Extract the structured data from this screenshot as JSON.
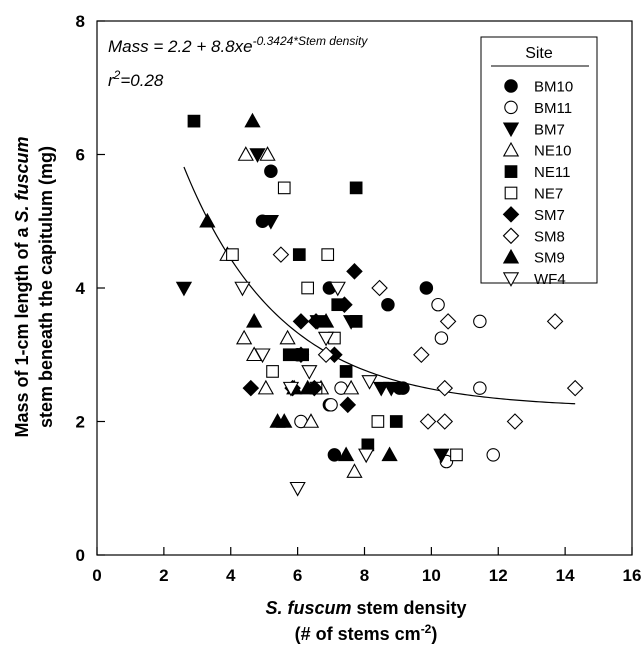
{
  "chart_data": {
    "type": "scatter",
    "xlabel_parts": [
      "S. fuscum",
      " stem density"
    ],
    "xlabel_line2_parts": [
      "(# of stems cm",
      "-2",
      ")"
    ],
    "ylabel_line1_parts": [
      "Mass of 1-cm length of a ",
      "S. fuscum"
    ],
    "ylabel_line2": "stem beneath the capitulum (mg)",
    "xlim": [
      0,
      16
    ],
    "ylim": [
      0,
      8
    ],
    "x_ticks": [
      "0",
      "2",
      "4",
      "6",
      "8",
      "10",
      "12",
      "14",
      "16"
    ],
    "y_ticks": [
      "0",
      "2",
      "4",
      "6",
      "8"
    ],
    "grid": false,
    "legend": {
      "title": "Site",
      "placement": "top-right"
    },
    "annotation": {
      "equation_prefix": "Mass = 2.2 + 8.8xe",
      "equation_exponent": "-0.3424*Stem density",
      "r2_prefix": "r",
      "r2_sup": "2",
      "r2_value": "=0.28"
    },
    "fit": {
      "a": 2.2,
      "b": 8.8,
      "k": 0.3424,
      "x_range": [
        2.6,
        14.3
      ]
    },
    "series": [
      {
        "name": "BM10",
        "marker": "circle-filled",
        "points": [
          [
            5.2,
            5.75
          ],
          [
            4.95,
            5.0
          ],
          [
            6.0,
            3.0
          ],
          [
            6.95,
            4.0
          ],
          [
            7.1,
            1.5
          ],
          [
            6.95,
            2.25
          ],
          [
            8.7,
            3.75
          ],
          [
            9.05,
            2.5
          ],
          [
            9.15,
            2.5
          ],
          [
            9.85,
            4.0
          ]
        ]
      },
      {
        "name": "BM11",
        "marker": "circle-open",
        "points": [
          [
            6.1,
            2.0
          ],
          [
            7.0,
            2.25
          ],
          [
            7.3,
            2.5
          ],
          [
            10.2,
            3.75
          ],
          [
            10.3,
            3.25
          ],
          [
            10.45,
            1.4
          ],
          [
            11.45,
            3.5
          ],
          [
            11.45,
            2.5
          ],
          [
            11.85,
            1.5
          ]
        ]
      },
      {
        "name": "BM7",
        "marker": "triangle-down-filled",
        "points": [
          [
            2.6,
            4.0
          ],
          [
            4.8,
            6.0
          ],
          [
            5.2,
            5.0
          ],
          [
            6.6,
            3.5
          ],
          [
            7.6,
            3.5
          ],
          [
            8.5,
            2.5
          ],
          [
            8.8,
            2.5
          ],
          [
            10.3,
            1.5
          ]
        ]
      },
      {
        "name": "NE10",
        "marker": "triangle-up-open",
        "points": [
          [
            3.9,
            4.5
          ],
          [
            4.45,
            6.0
          ],
          [
            5.1,
            6.0
          ],
          [
            4.4,
            3.25
          ],
          [
            4.7,
            3.0
          ],
          [
            5.05,
            2.5
          ],
          [
            5.7,
            3.25
          ],
          [
            6.4,
            2.0
          ],
          [
            6.7,
            2.5
          ],
          [
            7.7,
            1.25
          ],
          [
            7.6,
            2.5
          ]
        ]
      },
      {
        "name": "NE11",
        "marker": "square-filled",
        "points": [
          [
            2.9,
            6.5
          ],
          [
            5.75,
            3.0
          ],
          [
            6.05,
            4.5
          ],
          [
            6.15,
            3.0
          ],
          [
            7.2,
            3.75
          ],
          [
            7.75,
            3.5
          ],
          [
            7.75,
            5.5
          ],
          [
            7.45,
            2.75
          ],
          [
            8.1,
            1.65
          ],
          [
            8.95,
            2.0
          ]
        ]
      },
      {
        "name": "NE7",
        "marker": "square-open",
        "points": [
          [
            4.05,
            4.5
          ],
          [
            5.25,
            2.75
          ],
          [
            5.6,
            5.5
          ],
          [
            6.3,
            4.0
          ],
          [
            6.55,
            2.5
          ],
          [
            6.9,
            4.5
          ],
          [
            7.1,
            3.25
          ],
          [
            8.4,
            2.0
          ],
          [
            10.75,
            1.5
          ]
        ]
      },
      {
        "name": "SM7",
        "marker": "diamond-filled",
        "points": [
          [
            4.6,
            2.5
          ],
          [
            5.85,
            2.5
          ],
          [
            6.1,
            3.0
          ],
          [
            6.5,
            2.5
          ],
          [
            6.1,
            3.5
          ],
          [
            6.55,
            3.5
          ],
          [
            7.1,
            3.0
          ],
          [
            7.4,
            3.75
          ],
          [
            7.7,
            4.25
          ],
          [
            7.5,
            2.25
          ]
        ]
      },
      {
        "name": "SM8",
        "marker": "diamond-open",
        "points": [
          [
            5.5,
            4.5
          ],
          [
            6.85,
            3.0
          ],
          [
            8.45,
            4.0
          ],
          [
            9.7,
            3.0
          ],
          [
            9.9,
            2.0
          ],
          [
            10.4,
            2.5
          ],
          [
            10.4,
            2.0
          ],
          [
            10.5,
            3.5
          ],
          [
            12.5,
            2.0
          ],
          [
            13.7,
            3.5
          ],
          [
            14.3,
            2.5
          ]
        ]
      },
      {
        "name": "SM9",
        "marker": "triangle-up-filled",
        "points": [
          [
            3.3,
            5.0
          ],
          [
            4.65,
            6.5
          ],
          [
            4.7,
            3.5
          ],
          [
            5.4,
            2.0
          ],
          [
            5.6,
            2.0
          ],
          [
            5.9,
            2.5
          ],
          [
            6.3,
            2.5
          ],
          [
            6.85,
            3.5
          ],
          [
            7.45,
            1.5
          ],
          [
            8.75,
            1.5
          ]
        ]
      },
      {
        "name": "WF4",
        "marker": "triangle-down-open",
        "points": [
          [
            4.35,
            4.0
          ],
          [
            4.95,
            3.0
          ],
          [
            5.8,
            2.5
          ],
          [
            6.0,
            1.0
          ],
          [
            6.35,
            2.75
          ],
          [
            6.85,
            3.25
          ],
          [
            7.2,
            4.0
          ],
          [
            8.05,
            1.5
          ],
          [
            8.15,
            2.6
          ]
        ]
      }
    ]
  }
}
